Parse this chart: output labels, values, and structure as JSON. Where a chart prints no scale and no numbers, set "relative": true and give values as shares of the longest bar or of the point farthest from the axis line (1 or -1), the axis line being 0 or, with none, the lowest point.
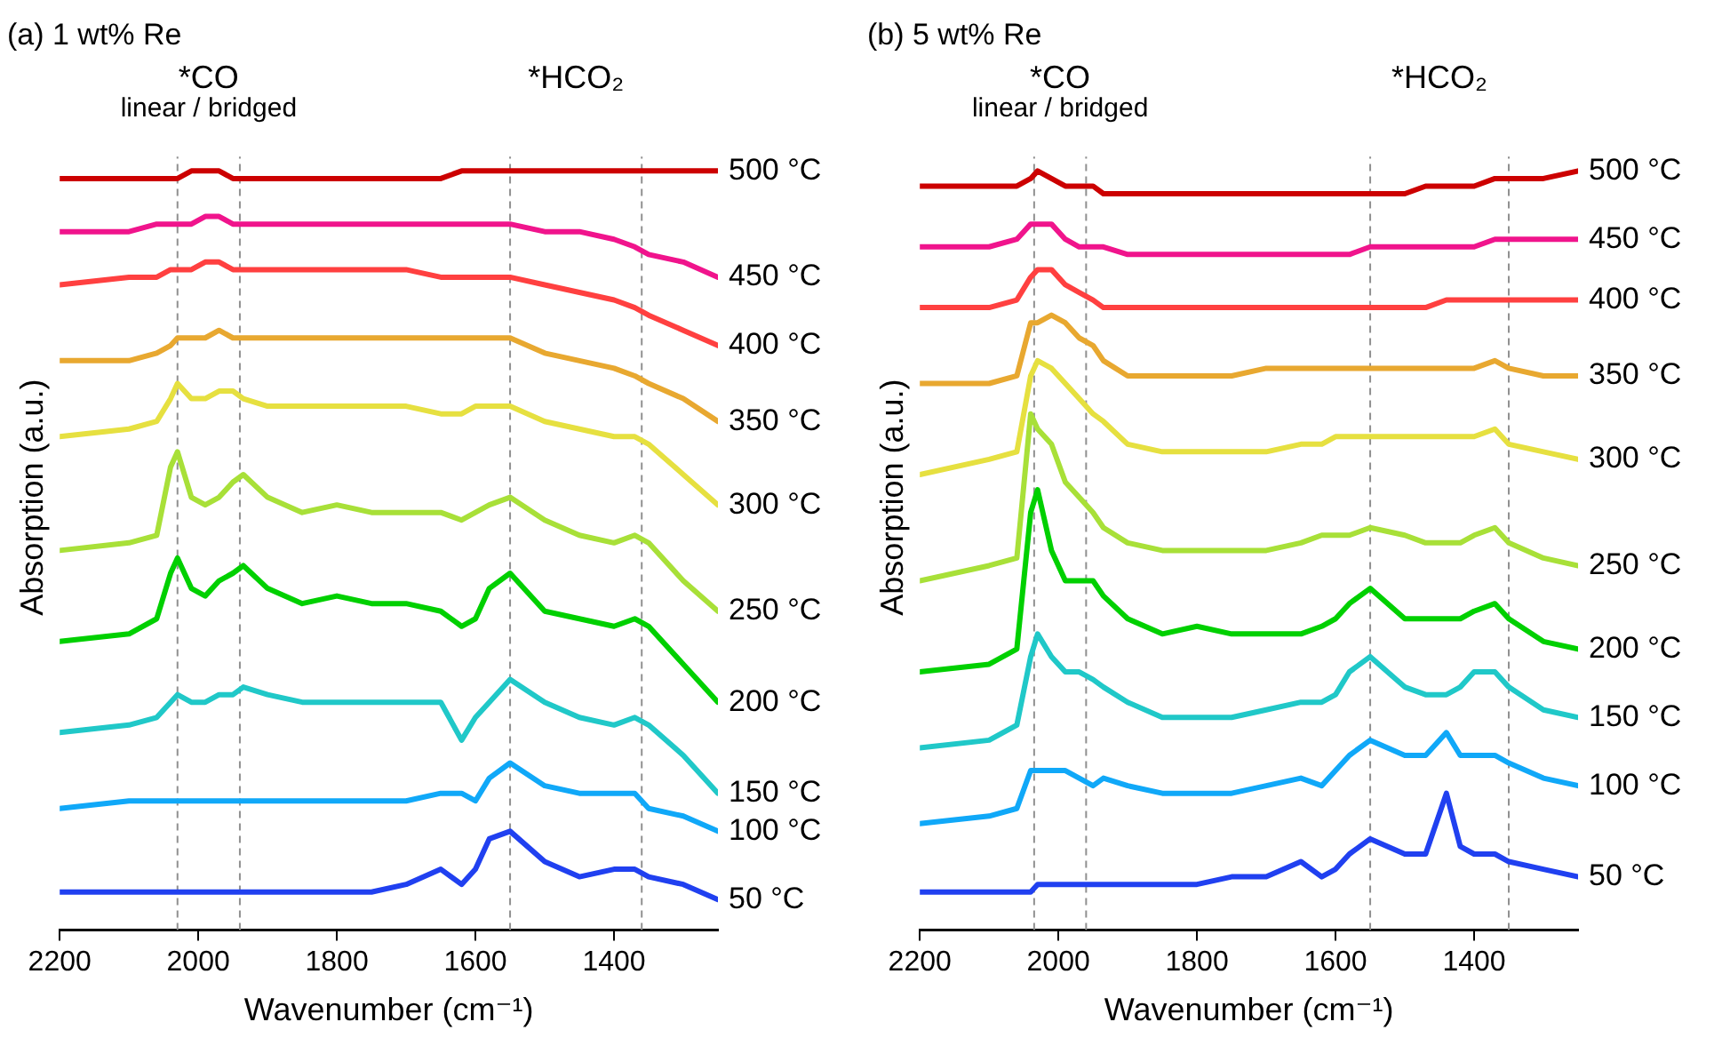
{
  "chart_data": [
    {
      "type": "line",
      "title": "(a) 1 wt% Re",
      "xlabel": "Wavenumber (cm⁻¹)",
      "ylabel": "Absorption (a.u.)",
      "relative": true,
      "xlim": [
        2200,
        1250
      ],
      "xticks": [
        2200,
        2000,
        1800,
        1600,
        1400
      ],
      "marker": "none",
      "line_style": "solid",
      "x": [
        2200,
        2100,
        2060,
        2040,
        2030,
        2010,
        1990,
        1970,
        1950,
        1935,
        1900,
        1850,
        1800,
        1750,
        1700,
        1650,
        1620,
        1600,
        1580,
        1550,
        1500,
        1450,
        1400,
        1370,
        1350,
        1300,
        1250
      ],
      "series": [
        {
          "name": "500 °C",
          "color": "#cc0000",
          "values": [
            0.99,
            0.99,
            0.99,
            0.99,
            0.99,
            1.0,
            1.0,
            1.0,
            0.99,
            0.99,
            0.99,
            0.99,
            0.99,
            0.99,
            0.99,
            0.99,
            1.0,
            1.0,
            1.0,
            1.0,
            1.0,
            1.0,
            1.0,
            1.0,
            1.0,
            1.0,
            1.0
          ]
        },
        {
          "name": "450 °C",
          "color": "#f0148c",
          "values": [
            0.92,
            0.92,
            0.93,
            0.93,
            0.93,
            0.93,
            0.94,
            0.94,
            0.93,
            0.93,
            0.93,
            0.93,
            0.93,
            0.93,
            0.93,
            0.93,
            0.93,
            0.93,
            0.93,
            0.93,
            0.92,
            0.92,
            0.91,
            0.9,
            0.89,
            0.88,
            0.86
          ]
        },
        {
          "name": "400 °C",
          "color": "#ff4040",
          "values": [
            0.85,
            0.86,
            0.86,
            0.87,
            0.87,
            0.87,
            0.88,
            0.88,
            0.87,
            0.87,
            0.87,
            0.87,
            0.87,
            0.87,
            0.87,
            0.86,
            0.86,
            0.86,
            0.86,
            0.86,
            0.85,
            0.84,
            0.83,
            0.82,
            0.81,
            0.79,
            0.77
          ]
        },
        {
          "name": "350 °C",
          "color": "#e8a830",
          "values": [
            0.75,
            0.75,
            0.76,
            0.77,
            0.78,
            0.78,
            0.78,
            0.79,
            0.78,
            0.78,
            0.78,
            0.78,
            0.78,
            0.78,
            0.78,
            0.78,
            0.78,
            0.78,
            0.78,
            0.78,
            0.76,
            0.75,
            0.74,
            0.73,
            0.72,
            0.7,
            0.67
          ]
        },
        {
          "name": "300 °C",
          "color": "#e6e040",
          "values": [
            0.65,
            0.66,
            0.67,
            0.7,
            0.72,
            0.7,
            0.7,
            0.71,
            0.71,
            0.7,
            0.69,
            0.69,
            0.69,
            0.69,
            0.69,
            0.68,
            0.68,
            0.69,
            0.69,
            0.69,
            0.67,
            0.66,
            0.65,
            0.65,
            0.64,
            0.6,
            0.56
          ]
        },
        {
          "name": "250 °C",
          "color": "#a8e038",
          "values": [
            0.5,
            0.51,
            0.52,
            0.61,
            0.63,
            0.57,
            0.56,
            0.57,
            0.59,
            0.6,
            0.57,
            0.55,
            0.56,
            0.55,
            0.55,
            0.55,
            0.54,
            0.55,
            0.56,
            0.57,
            0.54,
            0.52,
            0.51,
            0.52,
            0.51,
            0.46,
            0.42
          ]
        },
        {
          "name": "200 °C",
          "color": "#00d000",
          "values": [
            0.38,
            0.39,
            0.41,
            0.47,
            0.49,
            0.45,
            0.44,
            0.46,
            0.47,
            0.48,
            0.45,
            0.43,
            0.44,
            0.43,
            0.43,
            0.42,
            0.4,
            0.41,
            0.45,
            0.47,
            0.42,
            0.41,
            0.4,
            0.41,
            0.4,
            0.35,
            0.3
          ]
        },
        {
          "name": "150 °C",
          "color": "#20c8c8",
          "values": [
            0.26,
            0.27,
            0.28,
            0.3,
            0.31,
            0.3,
            0.3,
            0.31,
            0.31,
            0.32,
            0.31,
            0.3,
            0.3,
            0.3,
            0.3,
            0.3,
            0.25,
            0.28,
            0.3,
            0.33,
            0.3,
            0.28,
            0.27,
            0.28,
            0.27,
            0.23,
            0.18
          ]
        },
        {
          "name": "100 °C",
          "color": "#10a8f8",
          "values": [
            0.16,
            0.17,
            0.17,
            0.17,
            0.17,
            0.17,
            0.17,
            0.17,
            0.17,
            0.17,
            0.17,
            0.17,
            0.17,
            0.17,
            0.17,
            0.18,
            0.18,
            0.17,
            0.2,
            0.22,
            0.19,
            0.18,
            0.18,
            0.18,
            0.16,
            0.15,
            0.13
          ]
        },
        {
          "name": "50 °C",
          "color": "#2040f0",
          "values": [
            0.05,
            0.05,
            0.05,
            0.05,
            0.05,
            0.05,
            0.05,
            0.05,
            0.05,
            0.05,
            0.05,
            0.05,
            0.05,
            0.05,
            0.06,
            0.08,
            0.06,
            0.08,
            0.12,
            0.13,
            0.09,
            0.07,
            0.08,
            0.08,
            0.07,
            0.06,
            0.04
          ]
        }
      ],
      "ref_lines": [
        {
          "axis": "x",
          "value": 2030,
          "color": "#909090",
          "line_style": "dashed"
        },
        {
          "axis": "x",
          "value": 1940,
          "color": "#909090",
          "line_style": "dashed"
        },
        {
          "axis": "x",
          "value": 1550,
          "color": "#909090",
          "line_style": "dashed"
        },
        {
          "axis": "x",
          "value": 1360,
          "color": "#909090",
          "line_style": "dashed"
        }
      ],
      "annotations": [
        "*CO",
        "linear / bridged",
        "*HCO₂"
      ]
    },
    {
      "type": "line",
      "title": "(b) 5 wt% Re",
      "xlabel": "Wavenumber (cm⁻¹)",
      "ylabel": "Absorption (a.u.)",
      "relative": true,
      "xlim": [
        2200,
        1250
      ],
      "xticks": [
        2200,
        2000,
        1800,
        1600,
        1400
      ],
      "marker": "none",
      "line_style": "solid",
      "x": [
        2200,
        2100,
        2060,
        2040,
        2030,
        2010,
        1990,
        1970,
        1950,
        1935,
        1900,
        1850,
        1800,
        1750,
        1700,
        1650,
        1620,
        1600,
        1580,
        1550,
        1500,
        1470,
        1440,
        1420,
        1400,
        1370,
        1350,
        1300,
        1250
      ],
      "series": [
        {
          "name": "500 °C",
          "color": "#cc0000",
          "values": [
            0.98,
            0.98,
            0.98,
            0.99,
            1.0,
            0.99,
            0.98,
            0.98,
            0.98,
            0.97,
            0.97,
            0.97,
            0.97,
            0.97,
            0.97,
            0.97,
            0.97,
            0.97,
            0.97,
            0.97,
            0.97,
            0.98,
            0.98,
            0.98,
            0.98,
            0.99,
            0.99,
            0.99,
            1.0
          ]
        },
        {
          "name": "450 °C",
          "color": "#f0148c",
          "values": [
            0.9,
            0.9,
            0.91,
            0.93,
            0.93,
            0.93,
            0.91,
            0.9,
            0.9,
            0.9,
            0.89,
            0.89,
            0.89,
            0.89,
            0.89,
            0.89,
            0.89,
            0.89,
            0.89,
            0.9,
            0.9,
            0.9,
            0.9,
            0.9,
            0.9,
            0.91,
            0.91,
            0.91,
            0.91
          ]
        },
        {
          "name": "400 °C",
          "color": "#ff4040",
          "values": [
            0.82,
            0.82,
            0.83,
            0.86,
            0.87,
            0.87,
            0.85,
            0.84,
            0.83,
            0.82,
            0.82,
            0.82,
            0.82,
            0.82,
            0.82,
            0.82,
            0.82,
            0.82,
            0.82,
            0.82,
            0.82,
            0.82,
            0.83,
            0.83,
            0.83,
            0.83,
            0.83,
            0.83,
            0.83
          ]
        },
        {
          "name": "350 °C",
          "color": "#e8a830",
          "values": [
            0.72,
            0.72,
            0.73,
            0.8,
            0.8,
            0.81,
            0.8,
            0.78,
            0.77,
            0.75,
            0.73,
            0.73,
            0.73,
            0.73,
            0.74,
            0.74,
            0.74,
            0.74,
            0.74,
            0.74,
            0.74,
            0.74,
            0.74,
            0.74,
            0.74,
            0.75,
            0.74,
            0.73,
            0.73
          ]
        },
        {
          "name": "300 °C",
          "color": "#e6e040",
          "values": [
            0.6,
            0.62,
            0.63,
            0.73,
            0.75,
            0.74,
            0.72,
            0.7,
            0.68,
            0.67,
            0.64,
            0.63,
            0.63,
            0.63,
            0.63,
            0.64,
            0.64,
            0.65,
            0.65,
            0.65,
            0.65,
            0.65,
            0.65,
            0.65,
            0.65,
            0.66,
            0.64,
            0.63,
            0.62
          ]
        },
        {
          "name": "250 °C",
          "color": "#a8e038",
          "values": [
            0.46,
            0.48,
            0.49,
            0.68,
            0.66,
            0.64,
            0.59,
            0.57,
            0.55,
            0.53,
            0.51,
            0.5,
            0.5,
            0.5,
            0.5,
            0.51,
            0.52,
            0.52,
            0.52,
            0.53,
            0.52,
            0.51,
            0.51,
            0.51,
            0.52,
            0.53,
            0.51,
            0.49,
            0.48
          ]
        },
        {
          "name": "200 °C",
          "color": "#00d000",
          "values": [
            0.34,
            0.35,
            0.37,
            0.55,
            0.58,
            0.5,
            0.46,
            0.46,
            0.46,
            0.44,
            0.41,
            0.39,
            0.4,
            0.39,
            0.39,
            0.39,
            0.4,
            0.41,
            0.43,
            0.45,
            0.41,
            0.41,
            0.41,
            0.41,
            0.42,
            0.43,
            0.41,
            0.38,
            0.37
          ]
        },
        {
          "name": "150 °C",
          "color": "#20c8c8",
          "values": [
            0.24,
            0.25,
            0.27,
            0.36,
            0.39,
            0.36,
            0.34,
            0.34,
            0.33,
            0.32,
            0.3,
            0.28,
            0.28,
            0.28,
            0.29,
            0.3,
            0.3,
            0.31,
            0.34,
            0.36,
            0.32,
            0.31,
            0.31,
            0.32,
            0.34,
            0.34,
            0.32,
            0.29,
            0.28
          ]
        },
        {
          "name": "100 °C",
          "color": "#10a8f8",
          "values": [
            0.14,
            0.15,
            0.16,
            0.21,
            0.21,
            0.21,
            0.21,
            0.2,
            0.19,
            0.2,
            0.19,
            0.18,
            0.18,
            0.18,
            0.19,
            0.2,
            0.19,
            0.21,
            0.23,
            0.25,
            0.23,
            0.23,
            0.26,
            0.23,
            0.23,
            0.23,
            0.22,
            0.2,
            0.19
          ]
        },
        {
          "name": "50 °C",
          "color": "#2040f0",
          "values": [
            0.05,
            0.05,
            0.05,
            0.05,
            0.06,
            0.06,
            0.06,
            0.06,
            0.06,
            0.06,
            0.06,
            0.06,
            0.06,
            0.07,
            0.07,
            0.09,
            0.07,
            0.08,
            0.1,
            0.12,
            0.1,
            0.1,
            0.18,
            0.11,
            0.1,
            0.1,
            0.09,
            0.08,
            0.07
          ]
        }
      ],
      "ref_lines": [
        {
          "axis": "x",
          "value": 2035,
          "color": "#909090",
          "line_style": "dashed"
        },
        {
          "axis": "x",
          "value": 1960,
          "color": "#909090",
          "line_style": "dashed"
        },
        {
          "axis": "x",
          "value": 1550,
          "color": "#909090",
          "line_style": "dashed"
        },
        {
          "axis": "x",
          "value": 1350,
          "color": "#909090",
          "line_style": "dashed"
        }
      ],
      "annotations": [
        "*CO",
        "linear / bridged",
        "*HCO₂"
      ]
    }
  ]
}
